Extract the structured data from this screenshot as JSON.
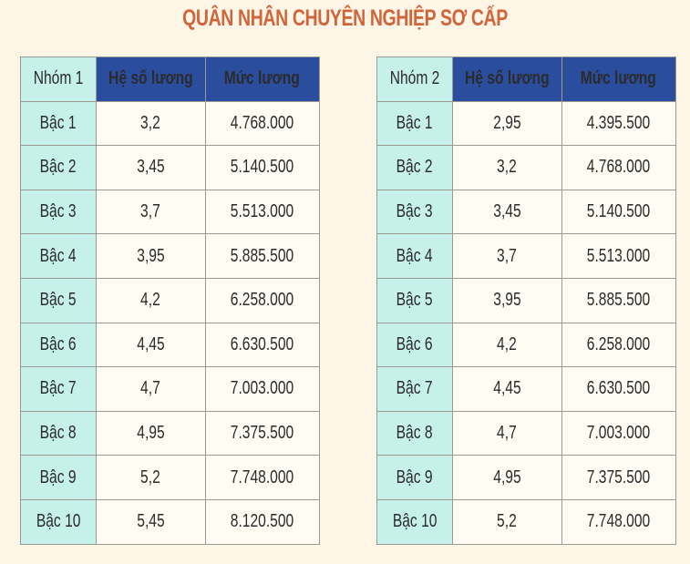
{
  "title": "QUÂN NHÂN CHUYÊN NGHIỆP SƠ CẤP",
  "colors": {
    "title": "#d2643a",
    "background": "#fdf6e7",
    "header_blue": "#2b4d9e",
    "level_cell": "#c6f0ea",
    "value_cell": "#fffcf4"
  },
  "tables": [
    {
      "group": "Nhóm 1",
      "headers": [
        "Hệ số lương",
        "Mức lương"
      ],
      "rows": [
        {
          "level": "Bậc 1",
          "coef": "3,2",
          "salary": "4.768.000"
        },
        {
          "level": "Bậc 2",
          "coef": "3,45",
          "salary": "5.140.500"
        },
        {
          "level": "Bậc 3",
          "coef": "3,7",
          "salary": "5.513.000"
        },
        {
          "level": "Bậc 4",
          "coef": "3,95",
          "salary": "5.885.500"
        },
        {
          "level": "Bậc 5",
          "coef": "4,2",
          "salary": "6.258.000"
        },
        {
          "level": "Bậc 6",
          "coef": "4,45",
          "salary": "6.630.500"
        },
        {
          "level": "Bậc 7",
          "coef": "4,7",
          "salary": "7.003.000"
        },
        {
          "level": "Bậc 8",
          "coef": "4,95",
          "salary": "7.375.500"
        },
        {
          "level": "Bậc 9",
          "coef": "5,2",
          "salary": "7.748.000"
        },
        {
          "level": "Bậc 10",
          "coef": "5,45",
          "salary": "8.120.500"
        }
      ]
    },
    {
      "group": "Nhóm 2",
      "headers": [
        "Hệ số lương",
        "Mức lương"
      ],
      "rows": [
        {
          "level": "Bậc 1",
          "coef": "2,95",
          "salary": "4.395.500"
        },
        {
          "level": "Bậc 2",
          "coef": "3,2",
          "salary": "4.768.000"
        },
        {
          "level": "Bậc 3",
          "coef": "3,45",
          "salary": "5.140.500"
        },
        {
          "level": "Bậc 4",
          "coef": "3,7",
          "salary": "5.513.000"
        },
        {
          "level": "Bậc 5",
          "coef": "3,95",
          "salary": "5.885.500"
        },
        {
          "level": "Bậc 6",
          "coef": "4,2",
          "salary": "6.258.000"
        },
        {
          "level": "Bậc 7",
          "coef": "4,45",
          "salary": "6.630.500"
        },
        {
          "level": "Bậc 8",
          "coef": "4,7",
          "salary": "7.003.000"
        },
        {
          "level": "Bậc 9",
          "coef": "4,95",
          "salary": "7.375.500"
        },
        {
          "level": "Bậc 10",
          "coef": "5,2",
          "salary": "7.748.000"
        }
      ]
    }
  ]
}
